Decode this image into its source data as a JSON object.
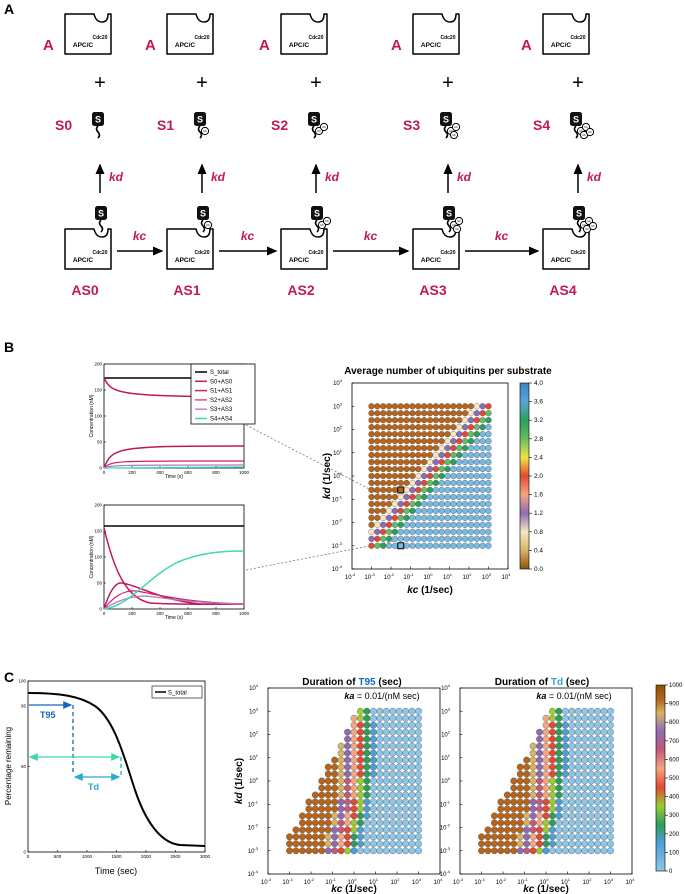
{
  "panels": {
    "a": "A",
    "b": "B",
    "c": "C"
  },
  "colors": {
    "magenta": "#c2185b",
    "blue": "#1565c0",
    "cyan": "#29a8d4",
    "teal": "#3fd7b3",
    "black": "#000000"
  },
  "panel_a": {
    "enzyme_letter": "A",
    "enzyme_label": "APC/C",
    "enzyme_sup": "Cdc20",
    "plus": "+",
    "substrate_glyph": "S",
    "free_states": [
      "S0",
      "S1",
      "S2",
      "S3",
      "S4"
    ],
    "bound_states": [
      "AS0",
      "AS1",
      "AS2",
      "AS3",
      "AS4"
    ],
    "kd_label": "kd",
    "kc_label": "kc",
    "ub_glyph": "Ub"
  },
  "panel_b": {
    "top_plot": {
      "ylabel": "Concentration (nM)",
      "xlabel": "Time (s)",
      "yticks": [
        "0",
        "50",
        "100",
        "150",
        "200"
      ],
      "xticks": [
        "0",
        "200",
        "400",
        "600",
        "800",
        "1000"
      ]
    },
    "bottom_plot": {
      "ylabel": "Concentration (nM)",
      "xlabel": "Time (s)",
      "yticks": [
        "0",
        "50",
        "100",
        "150",
        "200"
      ],
      "xticks": [
        "0",
        "200",
        "400",
        "600",
        "800",
        "1000"
      ]
    },
    "legend": [
      "S_total",
      "S0+AS0",
      "S1+AS1",
      "S2+AS2",
      "S3+AS3",
      "S4+AS4"
    ],
    "heatmap": {
      "title": "Average number of ubiquitins per substrate",
      "xlabel_var": "kc",
      "xlabel_unit": " (1/sec)",
      "ylabel_var": "kd",
      "ylabel_unit": " (1/sec)",
      "ticks": [
        "10",
        "10",
        "10",
        "10",
        "10",
        "10",
        "10",
        "10",
        "10"
      ],
      "exps": [
        "-4",
        "-3",
        "-2",
        "-1",
        "0",
        "1",
        "2",
        "3",
        "4"
      ],
      "colorbar_ticks": [
        "4.0",
        "3.6",
        "3.2",
        "2.8",
        "2.4",
        "2.0",
        "1.6",
        "1.2",
        "0.8",
        "0.4",
        "0.0"
      ]
    }
  },
  "panel_c": {
    "curve": {
      "ylabel": "Percentage remaining",
      "xlabel": "Time (sec)",
      "legend": "S_total",
      "yticks": [
        "100",
        "95",
        "50",
        "0"
      ],
      "xticks": [
        "0",
        "500",
        "1000",
        "1500",
        "2000",
        "2500",
        "3000"
      ],
      "t95_label": "T95",
      "td_label": "Td"
    },
    "heat1": {
      "title_prefix": "Duration of ",
      "title_var": "T95",
      "title_suffix": " (sec)",
      "ka_var": "ka",
      "ka_text": " = 0.01/(nM sec)"
    },
    "heat2": {
      "title_prefix": "Duration of ",
      "title_var": "Td",
      "title_suffix": " (sec)",
      "ka_var": "ka",
      "ka_text": " = 0.01/(nM sec)"
    },
    "xlabel_var": "kc",
    "xlabel_unit": " (1/sec)",
    "ylabel_var": "kd",
    "ylabel_unit": " (1/sec)",
    "colorbar_ticks": [
      "1000",
      "900",
      "800",
      "700",
      "600",
      "500",
      "400",
      "300",
      "200",
      "100",
      "0"
    ]
  }
}
